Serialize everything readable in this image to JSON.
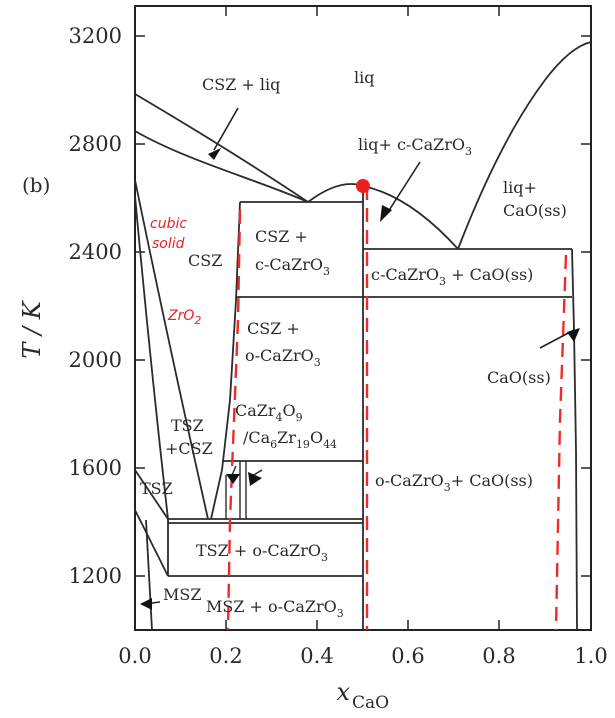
{
  "panel_label": "(b)",
  "axes": {
    "xlabel_main": "x",
    "xlabel_sub": "CaO",
    "ylabel": "T / K",
    "x_ticks": [
      "0.0",
      "0.2",
      "0.4",
      "0.6",
      "0.8",
      "1.0"
    ],
    "y_ticks": [
      "3200",
      "2800",
      "2400",
      "2000",
      "1600",
      "1200"
    ]
  },
  "regions": {
    "csz_liq": "CSZ + liq",
    "liq": "liq",
    "liq_c": "liq+ c-CaZrO",
    "liq_c_sub": "3",
    "liq_cao_1": "liq+",
    "liq_cao_2": "CaO(ss)",
    "csz": "CSZ",
    "csz_c_1": "CSZ +",
    "csz_c_2": "c-CaZrO",
    "csz_c_sub": "3",
    "c_cao": "c-CaZrO",
    "c_cao_sub": "3",
    "c_cao_rest": " + CaO(ss)",
    "csz_o_1": "CSZ +",
    "csz_o_2": "o-CaZrO",
    "csz_o_sub": "3",
    "cao_ss": "CaO(ss)",
    "tsz_csz_1": "TSZ",
    "tsz_csz_2": "+CSZ",
    "cazr4o9_a": "CaZr",
    "cazr4o9_s1": "4",
    "cazr4o9_b": "O",
    "cazr4o9_s2": "9",
    "ca6_a": "/Ca",
    "ca6_s1": "6",
    "ca6_b": "Zr",
    "ca6_s2": "19",
    "ca6_c": "O",
    "ca6_s3": "44",
    "o_cao": "o-CaZrO",
    "o_cao_sub": "3",
    "o_cao_rest": "+ CaO(ss)",
    "tsz": "TSZ",
    "tsz_o": "TSZ + o-CaZrO",
    "tsz_o_sub": "3",
    "msz": "MSZ",
    "msz_o": "MSZ + o-CaZrO",
    "msz_o_sub": "3"
  },
  "annotations": {
    "cubic_1": "cubic",
    "cubic_2": "solid",
    "zro2_1": "Z",
    "zro2_2": "rO",
    "zro2_sub": "2"
  },
  "colors": {
    "line": "#2b2b2b",
    "annotation_red": "#ee2a2a",
    "marker_red": "#ee1f1f"
  }
}
